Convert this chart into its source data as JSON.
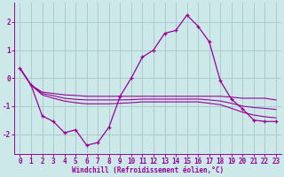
{
  "xlabel": "Windchill (Refroidissement éolien,°C)",
  "background_color": "#cce8e8",
  "grid_color": "#aacccc",
  "line_color": "#990099",
  "xlim": [
    -0.5,
    23.5
  ],
  "ylim": [
    -2.7,
    2.7
  ],
  "yticks": [
    -2,
    -1,
    0,
    1,
    2
  ],
  "xticks": [
    0,
    1,
    2,
    3,
    4,
    5,
    6,
    7,
    8,
    9,
    10,
    11,
    12,
    13,
    14,
    15,
    16,
    17,
    18,
    19,
    20,
    21,
    22,
    23
  ],
  "main_line_x": [
    0,
    1,
    2,
    3,
    4,
    5,
    6,
    7,
    8,
    9,
    10,
    11,
    12,
    13,
    14,
    15,
    16,
    17,
    18,
    19,
    20,
    21,
    22,
    23
  ],
  "main_line_y": [
    0.35,
    -0.25,
    -1.35,
    -1.55,
    -1.95,
    -1.85,
    -2.4,
    -2.3,
    -1.75,
    -0.65,
    0.0,
    0.75,
    1.0,
    1.6,
    1.7,
    2.25,
    1.85,
    1.3,
    -0.1,
    -0.75,
    -1.1,
    -1.5,
    -1.55,
    -1.55
  ],
  "band_line1_x": [
    0,
    1,
    2,
    3,
    4,
    5,
    6,
    7,
    8,
    9,
    10,
    11,
    12,
    13,
    14,
    15,
    16,
    17,
    18,
    19,
    20,
    21,
    22,
    23
  ],
  "band_line1_y": [
    0.35,
    -0.25,
    -0.5,
    -0.55,
    -0.6,
    -0.62,
    -0.65,
    -0.65,
    -0.65,
    -0.65,
    -0.65,
    -0.65,
    -0.65,
    -0.65,
    -0.65,
    -0.65,
    -0.65,
    -0.65,
    -0.65,
    -0.68,
    -0.72,
    -0.72,
    -0.72,
    -0.78
  ],
  "band_line2_x": [
    0,
    1,
    2,
    3,
    4,
    5,
    6,
    7,
    8,
    9,
    10,
    11,
    12,
    13,
    14,
    15,
    16,
    17,
    18,
    19,
    20,
    21,
    22,
    23
  ],
  "band_line2_y": [
    0.35,
    -0.25,
    -0.55,
    -0.63,
    -0.72,
    -0.76,
    -0.78,
    -0.78,
    -0.78,
    -0.78,
    -0.77,
    -0.75,
    -0.75,
    -0.75,
    -0.75,
    -0.75,
    -0.75,
    -0.78,
    -0.82,
    -0.9,
    -1.0,
    -1.05,
    -1.08,
    -1.12
  ],
  "band_line3_x": [
    0,
    1,
    2,
    3,
    4,
    5,
    6,
    7,
    8,
    9,
    10,
    11,
    12,
    13,
    14,
    15,
    16,
    17,
    18,
    19,
    20,
    21,
    22,
    23
  ],
  "band_line3_y": [
    0.35,
    -0.25,
    -0.6,
    -0.72,
    -0.82,
    -0.88,
    -0.92,
    -0.92,
    -0.92,
    -0.9,
    -0.88,
    -0.85,
    -0.85,
    -0.85,
    -0.85,
    -0.85,
    -0.85,
    -0.9,
    -0.95,
    -1.08,
    -1.22,
    -1.32,
    -1.38,
    -1.42
  ]
}
